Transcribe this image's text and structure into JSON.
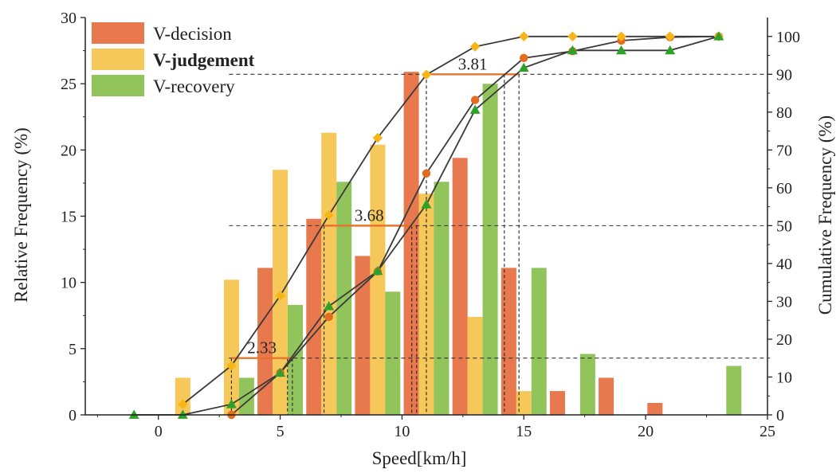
{
  "chart_data": {
    "type": "bar",
    "xlabel": "Speed[km/h]",
    "ylabel": "Relative Frequency (%)",
    "y2label": "Cumulative Frequency (%)",
    "xlim": [
      -3,
      25
    ],
    "ylim": [
      0,
      30
    ],
    "y2lim": [
      0,
      105
    ],
    "x_ticks": [
      0,
      5,
      10,
      15,
      20,
      25
    ],
    "y_ticks": [
      0,
      5,
      10,
      15,
      20,
      25,
      30
    ],
    "y2_ticks": [
      0,
      10,
      20,
      30,
      40,
      50,
      60,
      70,
      80,
      90,
      100
    ],
    "legend_position": "top-left",
    "grid": false,
    "colors": {
      "decision": "#e8784e",
      "judgement": "#f6c85a",
      "recovery": "#92c45c",
      "marker_decision": "#e46c1f",
      "marker_judgement": "#f7b516",
      "marker_recovery": "#2ea12a",
      "line": "#3a3a3a",
      "percentile_line": "#e8742c"
    },
    "bar_series": [
      {
        "name": "V-decision",
        "x": [
          3,
          5,
          7,
          9,
          11,
          13,
          15,
          17,
          19,
          21
        ],
        "values": [
          0,
          11.1,
          14.8,
          12.0,
          25.9,
          19.4,
          11.1,
          1.8,
          2.8,
          0.9
        ]
      },
      {
        "name": "V-judgement",
        "x": [
          1,
          3,
          5,
          7,
          9,
          11,
          13,
          15
        ],
        "values": [
          2.8,
          10.2,
          18.5,
          21.3,
          20.4,
          16.7,
          7.4,
          1.8
        ]
      },
      {
        "name": "V-recovery",
        "x": [
          3,
          5,
          7,
          9,
          11,
          13,
          15,
          17,
          23
        ],
        "values": [
          2.8,
          8.3,
          17.6,
          9.3,
          17.6,
          25.0,
          11.1,
          4.6,
          3.7
        ]
      }
    ],
    "cumulative_series": [
      {
        "name": "V-decision",
        "marker": "circle",
        "x": [
          3,
          5,
          7,
          9,
          11,
          13,
          15,
          17,
          19,
          21,
          23
        ],
        "values": [
          0,
          11.1,
          25.9,
          37.9,
          63.8,
          83.2,
          94.3,
          96.1,
          98.9,
          99.8,
          100
        ]
      },
      {
        "name": "V-judgement",
        "marker": "diamond",
        "x": [
          1,
          3,
          5,
          7,
          9,
          11,
          13,
          15,
          17,
          19,
          21,
          23
        ],
        "values": [
          2.8,
          13.0,
          31.5,
          52.8,
          73.2,
          89.9,
          97.3,
          100,
          100,
          100,
          100,
          100
        ]
      },
      {
        "name": "V-recovery",
        "marker": "triangle",
        "x": [
          -1,
          1,
          3,
          5,
          7,
          9,
          11,
          13,
          15,
          17,
          19,
          21,
          23
        ],
        "values": [
          0,
          0,
          2.8,
          11.1,
          28.7,
          38.0,
          55.6,
          80.6,
          91.7,
          96.3,
          96.3,
          96.3,
          100
        ]
      }
    ],
    "reference_levels": [
      15,
      50,
      90
    ],
    "reference_markers": [
      {
        "percentile": 15,
        "x": [
          3.0,
          5.3,
          5.5
        ],
        "width_x": [
          3.0,
          5.5
        ],
        "label": "2.33"
      },
      {
        "percentile": 50,
        "x": [
          6.8,
          10.4,
          10.6
        ],
        "width_x": [
          6.8,
          10.5
        ],
        "label": "3.68"
      },
      {
        "percentile": 90,
        "x": [
          11.0,
          14.2,
          14.8
        ],
        "width_x": [
          11.0,
          14.8
        ],
        "label": "3.81"
      }
    ]
  }
}
